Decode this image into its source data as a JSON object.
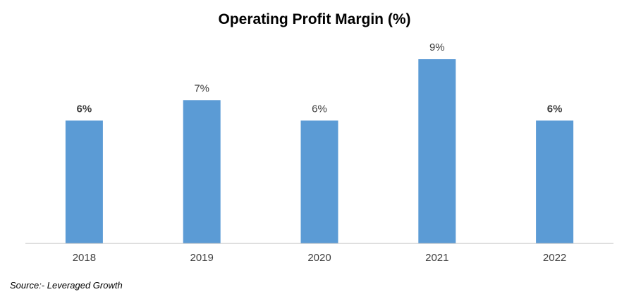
{
  "chart_data": {
    "type": "bar",
    "title": "Operating Profit Margin (%)",
    "categories": [
      "2018",
      "2019",
      "2020",
      "2021",
      "2022"
    ],
    "values": [
      6,
      7,
      6,
      9,
      6
    ],
    "data_labels": [
      "6%",
      "7%",
      "6%",
      "9%",
      "6%"
    ],
    "bold_labels": [
      true,
      false,
      false,
      false,
      true
    ],
    "xlabel": "",
    "ylabel": "",
    "ylim": [
      0,
      10
    ],
    "grid": false,
    "legend": "none",
    "bar_color": "#5b9bd5",
    "axis_color": "#bfbfbf",
    "label_color": "#404040"
  },
  "source": "Source:- Leveraged Growth"
}
